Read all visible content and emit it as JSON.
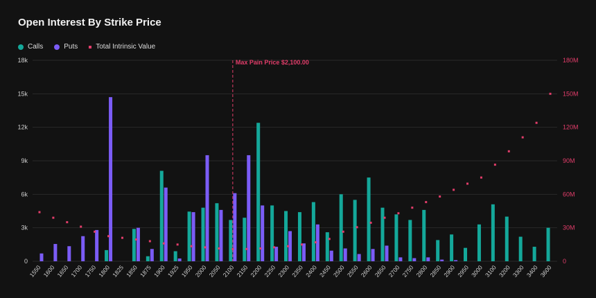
{
  "title": "Open Interest By Strike Price",
  "legend": {
    "calls": "Calls",
    "puts": "Puts",
    "intrinsic": "Total Intrinsic Value"
  },
  "colors": {
    "calls": "#14a89a",
    "puts": "#7b5cf6",
    "intrinsic": "#e23d6a",
    "background": "#121212",
    "grid": "#2a2a2a"
  },
  "chart_data": {
    "type": "bar",
    "title": "Open Interest By Strike Price",
    "categories": [
      "1550",
      "1600",
      "1650",
      "1700",
      "1750",
      "1800",
      "1825",
      "1850",
      "1875",
      "1900",
      "1925",
      "1950",
      "2000",
      "2050",
      "2100",
      "2150",
      "2200",
      "2250",
      "2300",
      "2350",
      "2400",
      "2450",
      "2500",
      "2550",
      "2600",
      "2650",
      "2700",
      "2750",
      "2800",
      "2850",
      "2900",
      "2950",
      "3000",
      "3100",
      "3200",
      "3300",
      "3400",
      "3600"
    ],
    "series": [
      {
        "name": "Calls",
        "axis": "left",
        "values": [
          0,
          0,
          0,
          0,
          0,
          1000,
          0,
          2900,
          450,
          8100,
          900,
          4450,
          4800,
          5200,
          3700,
          3900,
          12400,
          5000,
          4500,
          4400,
          5300,
          2600,
          6000,
          5500,
          7500,
          4800,
          4200,
          3700,
          4600,
          1900,
          2400,
          1200,
          3300,
          5100,
          4000,
          2200,
          1300,
          3000
        ]
      },
      {
        "name": "Puts",
        "axis": "left",
        "values": [
          700,
          1550,
          1350,
          2250,
          2800,
          14700,
          0,
          3000,
          1100,
          6600,
          250,
          4400,
          9500,
          4600,
          6100,
          9500,
          5000,
          1300,
          2700,
          1600,
          3300,
          950,
          1150,
          650,
          1100,
          1400,
          350,
          280,
          350,
          150,
          100,
          0,
          0,
          0,
          0,
          0,
          0,
          0
        ]
      },
      {
        "name": "Total Intrinsic Value",
        "axis": "right",
        "type": "scatter",
        "values": [
          44000000,
          39000000,
          35000000,
          31000000,
          26500000,
          22500000,
          21000000,
          19500000,
          18000000,
          16000000,
          15000000,
          13500000,
          12500000,
          11500000,
          11000000,
          11000000,
          11500000,
          12500000,
          13500000,
          15000000,
          17000000,
          20000000,
          26500000,
          30500000,
          34500000,
          39000000,
          43000000,
          48000000,
          53000000,
          58000000,
          64000000,
          69500000,
          75000000,
          86500000,
          98500000,
          111000000,
          124000000,
          150000000
        ]
      }
    ],
    "y_left": {
      "min": 0,
      "max": 18000,
      "ticks": [
        0,
        3000,
        6000,
        9000,
        12000,
        15000,
        18000
      ],
      "tick_labels": [
        "0",
        "3k",
        "6k",
        "9k",
        "12k",
        "15k",
        "18k"
      ]
    },
    "y_right": {
      "min": 0,
      "max": 180000000,
      "ticks": [
        0,
        30000000,
        60000000,
        90000000,
        120000000,
        150000000,
        180000000
      ],
      "tick_labels": [
        "0",
        "30M",
        "60M",
        "90M",
        "120M",
        "150M",
        "180M"
      ]
    },
    "annotation": {
      "label": "Max Pain Price $2,100.00",
      "category": "2100"
    },
    "grid": "horizontal",
    "legend_position": "top-left"
  }
}
